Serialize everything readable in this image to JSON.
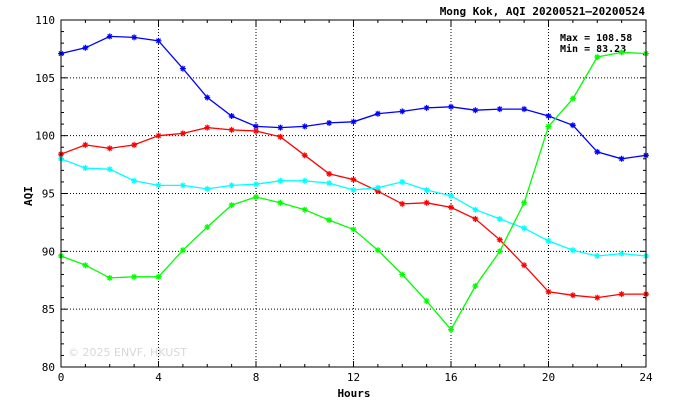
{
  "chart_data": {
    "type": "line",
    "title": "Mong Kok, AQI 20200521–20200524",
    "xlabel": "Hours",
    "ylabel": "AQI",
    "xlim": [
      0,
      24
    ],
    "ylim": [
      80,
      110
    ],
    "xticks": [
      0,
      4,
      8,
      12,
      16,
      20,
      24
    ],
    "yticks": [
      80,
      85,
      90,
      95,
      100,
      105,
      110
    ],
    "grid": true,
    "stats": {
      "max": "Max = 108.58",
      "min": "Min =  83.23"
    },
    "watermark": "© 2025  ENVF, HKUST",
    "x": [
      0,
      1,
      2,
      3,
      4,
      5,
      6,
      7,
      8,
      9,
      10,
      11,
      12,
      13,
      14,
      15,
      16,
      17,
      18,
      19,
      20,
      21,
      22,
      23,
      24
    ],
    "series": [
      {
        "color": "#0000ff",
        "values": [
          107.1,
          107.6,
          108.58,
          108.5,
          108.2,
          105.8,
          103.3,
          101.7,
          100.8,
          100.7,
          100.8,
          101.1,
          101.2,
          101.9,
          102.1,
          102.4,
          102.5,
          102.2,
          102.3,
          102.3,
          101.7,
          100.9,
          98.6,
          98.0,
          98.3
        ]
      },
      {
        "color": "#ff0000",
        "values": [
          98.4,
          99.2,
          98.9,
          99.2,
          100.0,
          100.2,
          100.7,
          100.5,
          100.4,
          99.9,
          98.3,
          96.7,
          96.2,
          95.2,
          94.1,
          94.2,
          93.8,
          92.8,
          91.0,
          88.8,
          86.5,
          86.2,
          86.0,
          86.3,
          86.3
        ]
      },
      {
        "color": "#00ffff",
        "values": [
          98.0,
          97.2,
          97.1,
          96.1,
          95.7,
          95.7,
          95.4,
          95.7,
          95.8,
          96.1,
          96.1,
          95.9,
          95.3,
          95.5,
          96.0,
          95.3,
          94.8,
          93.6,
          92.8,
          92.0,
          90.9,
          90.1,
          89.6,
          89.8,
          89.6
        ]
      },
      {
        "color": "#00ff00",
        "values": [
          89.6,
          88.8,
          87.7,
          87.8,
          87.8,
          90.1,
          92.1,
          94.0,
          94.7,
          94.2,
          93.6,
          92.7,
          91.9,
          90.1,
          88.0,
          85.7,
          83.23,
          87.0,
          90.0,
          94.2,
          100.8,
          103.2,
          106.8,
          107.2,
          107.1
        ]
      }
    ]
  }
}
